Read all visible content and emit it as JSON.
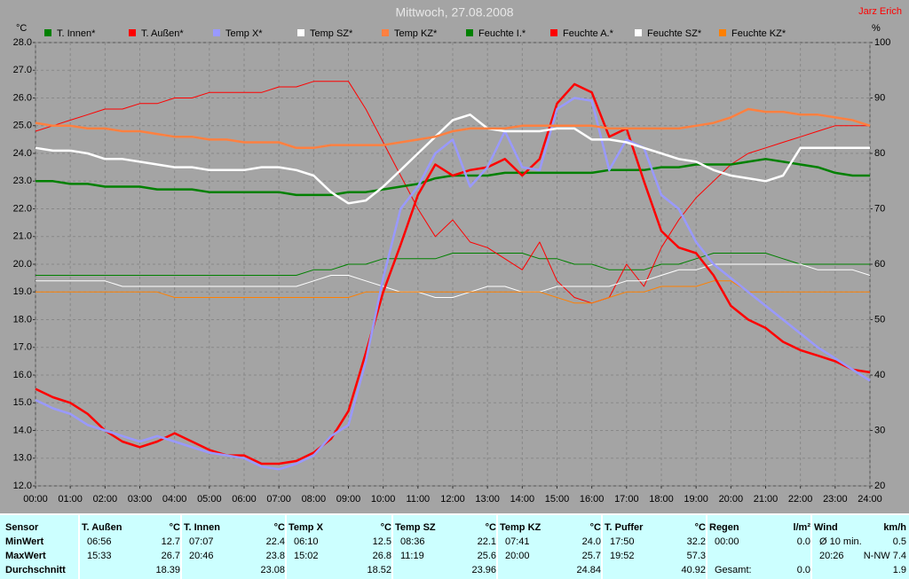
{
  "chart_data": {
    "type": "line",
    "title": "Mittwoch, 27.08.2008",
    "annotation": "Jarz Erich",
    "y_label": "°C",
    "y2_label": "%",
    "grid": true,
    "x": [
      0,
      0.5,
      1,
      1.5,
      2,
      2.5,
      3,
      3.5,
      4,
      4.5,
      5,
      5.5,
      6,
      6.5,
      7,
      7.5,
      8,
      8.5,
      9,
      9.5,
      10,
      10.5,
      11,
      11.5,
      12,
      12.5,
      13,
      13.5,
      14,
      14.5,
      15,
      15.5,
      16,
      16.5,
      17,
      17.5,
      18,
      18.5,
      19,
      19.5,
      20,
      20.5,
      21,
      21.5,
      22,
      22.5,
      23,
      23.5,
      24
    ],
    "xlim": [
      0,
      24
    ],
    "xticks": [
      {
        "value": 0,
        "label": "00:00"
      },
      {
        "value": 1,
        "label": "01:00"
      },
      {
        "value": 2,
        "label": "02:00"
      },
      {
        "value": 3,
        "label": "03:00"
      },
      {
        "value": 4,
        "label": "04:00"
      },
      {
        "value": 5,
        "label": "05:00"
      },
      {
        "value": 6,
        "label": "06:00"
      },
      {
        "value": 7,
        "label": "07:00"
      },
      {
        "value": 8,
        "label": "08:00"
      },
      {
        "value": 9,
        "label": "09:00"
      },
      {
        "value": 10,
        "label": "10:00"
      },
      {
        "value": 11,
        "label": "11:00"
      },
      {
        "value": 12,
        "label": "12:00"
      },
      {
        "value": 13,
        "label": "13:00"
      },
      {
        "value": 14,
        "label": "14:00"
      },
      {
        "value": 15,
        "label": "15:00"
      },
      {
        "value": 16,
        "label": "16:00"
      },
      {
        "value": 17,
        "label": "17:00"
      },
      {
        "value": 18,
        "label": "18:00"
      },
      {
        "value": 19,
        "label": "19:00"
      },
      {
        "value": 20,
        "label": "20:00"
      },
      {
        "value": 21,
        "label": "21:00"
      },
      {
        "value": 22,
        "label": "22:00"
      },
      {
        "value": 23,
        "label": "23:00"
      },
      {
        "value": 24,
        "label": "24:00"
      }
    ],
    "ylim": [
      12,
      28
    ],
    "yticks": [
      {
        "value": 12,
        "label": "12.0"
      },
      {
        "value": 13,
        "label": "13.0"
      },
      {
        "value": 14,
        "label": "14.0"
      },
      {
        "value": 15,
        "label": "15.0"
      },
      {
        "value": 16,
        "label": "16.0"
      },
      {
        "value": 17,
        "label": "17.0"
      },
      {
        "value": 18,
        "label": "18.0"
      },
      {
        "value": 19,
        "label": "19.0"
      },
      {
        "value": 20,
        "label": "20.0"
      },
      {
        "value": 21,
        "label": "21.0"
      },
      {
        "value": 22,
        "label": "22.0"
      },
      {
        "value": 23,
        "label": "23.0"
      },
      {
        "value": 24,
        "label": "24.0"
      },
      {
        "value": 25,
        "label": "25.0"
      },
      {
        "value": 26,
        "label": "26.0"
      },
      {
        "value": 27,
        "label": "27.0"
      },
      {
        "value": 28,
        "label": "28.0"
      }
    ],
    "y2lim": [
      20,
      100
    ],
    "y2ticks": [
      20,
      30,
      40,
      50,
      60,
      70,
      80,
      90,
      100
    ],
    "series": [
      {
        "name": "T. Innen*",
        "color": "#008000",
        "values": [
          23.0,
          23.0,
          22.9,
          22.9,
          22.8,
          22.8,
          22.8,
          22.7,
          22.7,
          22.7,
          22.6,
          22.6,
          22.6,
          22.6,
          22.6,
          22.5,
          22.5,
          22.5,
          22.6,
          22.6,
          22.7,
          22.8,
          22.9,
          23.1,
          23.2,
          23.2,
          23.2,
          23.3,
          23.3,
          23.3,
          23.3,
          23.3,
          23.3,
          23.4,
          23.4,
          23.4,
          23.5,
          23.5,
          23.6,
          23.6,
          23.6,
          23.7,
          23.8,
          23.7,
          23.6,
          23.5,
          23.3,
          23.2,
          23.2
        ]
      },
      {
        "name": "T. Außen*",
        "color": "#ff0000",
        "values": [
          15.5,
          15.2,
          15.0,
          14.6,
          14.0,
          13.6,
          13.4,
          13.6,
          13.9,
          13.6,
          13.3,
          13.1,
          13.1,
          12.8,
          12.8,
          12.9,
          13.2,
          13.7,
          14.7,
          16.8,
          19.0,
          20.7,
          22.5,
          23.6,
          23.2,
          23.4,
          23.5,
          23.8,
          23.2,
          23.8,
          25.8,
          26.5,
          26.2,
          24.6,
          24.9,
          23.0,
          21.2,
          20.6,
          20.4,
          19.6,
          18.5,
          18.0,
          17.7,
          17.2,
          16.9,
          16.7,
          16.5,
          16.2,
          16.1
        ]
      },
      {
        "name": "Temp X*",
        "color": "#9999ff",
        "values": [
          15.1,
          14.8,
          14.6,
          14.2,
          14.0,
          13.8,
          13.6,
          13.8,
          13.6,
          13.4,
          13.2,
          13.1,
          13.0,
          12.7,
          12.6,
          12.8,
          13.1,
          13.8,
          14.2,
          16.5,
          19.5,
          22.0,
          22.8,
          24.0,
          24.5,
          22.8,
          23.5,
          24.8,
          23.5,
          23.4,
          25.6,
          26.0,
          25.9,
          23.4,
          24.5,
          24.2,
          22.5,
          22.0,
          20.8,
          20.0,
          19.5,
          19.0,
          18.5,
          18.0,
          17.5,
          17.0,
          16.6,
          16.2,
          15.8
        ]
      },
      {
        "name": "Temp SZ*",
        "color": "#ffffff",
        "values": [
          24.2,
          24.1,
          24.1,
          24.0,
          23.8,
          23.8,
          23.7,
          23.6,
          23.5,
          23.5,
          23.4,
          23.4,
          23.4,
          23.5,
          23.5,
          23.4,
          23.2,
          22.6,
          22.2,
          22.3,
          22.8,
          23.4,
          24.0,
          24.6,
          25.2,
          25.4,
          24.9,
          24.8,
          24.8,
          24.8,
          24.9,
          24.9,
          24.5,
          24.5,
          24.4,
          24.2,
          24.0,
          23.8,
          23.7,
          23.4,
          23.2,
          23.1,
          23.0,
          23.2,
          24.2,
          24.2,
          24.2,
          24.2,
          24.2
        ]
      },
      {
        "name": "Temp KZ*",
        "color": "#ff8040",
        "values": [
          25.1,
          25.0,
          25.0,
          24.9,
          24.9,
          24.8,
          24.8,
          24.7,
          24.6,
          24.6,
          24.5,
          24.5,
          24.4,
          24.4,
          24.4,
          24.2,
          24.2,
          24.3,
          24.3,
          24.3,
          24.3,
          24.4,
          24.5,
          24.6,
          24.8,
          24.9,
          24.9,
          24.9,
          25.0,
          25.0,
          25.0,
          25.0,
          25.0,
          24.9,
          24.9,
          24.9,
          24.9,
          24.9,
          25.0,
          25.1,
          25.3,
          25.6,
          25.5,
          25.5,
          25.4,
          25.4,
          25.3,
          25.2,
          25.0
        ]
      },
      {
        "name": "Feuchte I.*",
        "color": "#008000",
        "axis": "y2",
        "values": [
          58,
          58,
          58,
          58,
          58,
          58,
          58,
          58,
          58,
          58,
          58,
          58,
          58,
          58,
          58,
          58,
          59,
          59,
          60,
          60,
          61,
          61,
          61,
          61,
          62,
          62,
          62,
          62,
          62,
          61,
          61,
          60,
          60,
          59,
          59,
          59,
          60,
          60,
          61,
          62,
          62,
          62,
          62,
          61,
          60,
          60,
          60,
          60,
          60
        ]
      },
      {
        "name": "Feuchte A.*",
        "color": "#ff0000",
        "axis": "y2",
        "values": [
          84,
          85,
          86,
          87,
          88,
          88,
          89,
          89,
          90,
          90,
          91,
          91,
          91,
          91,
          92,
          92,
          93,
          93,
          93,
          88,
          82,
          76,
          70,
          65,
          68,
          64,
          63,
          61,
          59,
          64,
          57,
          54,
          53,
          54,
          60,
          56,
          63,
          68,
          72,
          75,
          78,
          80,
          81,
          82,
          83,
          84,
          85,
          85,
          85
        ]
      },
      {
        "name": "Feuchte SZ*",
        "color": "#ffffff",
        "axis": "y2",
        "values": [
          57,
          57,
          57,
          57,
          57,
          56,
          56,
          56,
          56,
          56,
          56,
          56,
          56,
          56,
          56,
          56,
          57,
          58,
          58,
          57,
          56,
          55,
          55,
          54,
          54,
          55,
          56,
          56,
          55,
          55,
          56,
          56,
          56,
          56,
          57,
          57,
          58,
          59,
          59,
          60,
          60,
          60,
          60,
          60,
          60,
          59,
          59,
          59,
          58
        ]
      },
      {
        "name": "Feuchte KZ*",
        "color": "#ff8000",
        "axis": "y2",
        "values": [
          55,
          55,
          55,
          55,
          55,
          55,
          55,
          55,
          54,
          54,
          54,
          54,
          54,
          54,
          54,
          54,
          54,
          54,
          54,
          55,
          55,
          55,
          55,
          55,
          55,
          55,
          55,
          55,
          55,
          55,
          54,
          53,
          53,
          54,
          55,
          55,
          56,
          56,
          56,
          57,
          57,
          55,
          55,
          55,
          55,
          55,
          55,
          55,
          55
        ]
      }
    ]
  },
  "table": {
    "labels": [
      "Sensor",
      "MinWert",
      "MaxWert",
      "Durchschnitt"
    ],
    "groups": [
      {
        "title": "T. Außen",
        "unit": "°C",
        "rows": [
          [
            "06:56",
            "12.7"
          ],
          [
            "15:33",
            "26.7"
          ],
          [
            "18.39"
          ]
        ]
      },
      {
        "title": "T. Innen",
        "unit": "°C",
        "rows": [
          [
            "07:07",
            "22.4"
          ],
          [
            "20:46",
            "23.8"
          ],
          [
            "23.08"
          ]
        ]
      },
      {
        "title": "Temp X",
        "unit": "°C",
        "rows": [
          [
            "06:10",
            "12.5"
          ],
          [
            "15:02",
            "26.8"
          ],
          [
            "18.52"
          ]
        ]
      },
      {
        "title": "Temp SZ",
        "unit": "°C",
        "rows": [
          [
            "08:36",
            "22.1"
          ],
          [
            "11:19",
            "25.6"
          ],
          [
            "23.96"
          ]
        ]
      },
      {
        "title": "Temp KZ",
        "unit": "°C",
        "rows": [
          [
            "07:41",
            "24.0"
          ],
          [
            "20:00",
            "25.7"
          ],
          [
            "24.84"
          ]
        ]
      },
      {
        "title": "T. Puffer",
        "unit": "°C",
        "rows": [
          [
            "17:50",
            "32.2"
          ],
          [
            "19:52",
            "57.3"
          ],
          [
            "40.92"
          ]
        ]
      },
      {
        "title": "Regen",
        "unit": "l/m²",
        "rows": [
          [
            "00:00",
            "0.0"
          ],
          [],
          [
            "Gesamt:",
            "0.0"
          ]
        ]
      },
      {
        "title": "Wind",
        "unit": "km/h",
        "rows": [
          [
            "Ø 10 min.",
            "0.5"
          ],
          [
            "20:26",
            "N-NW 7.4"
          ],
          [
            "1.9"
          ]
        ]
      }
    ]
  }
}
